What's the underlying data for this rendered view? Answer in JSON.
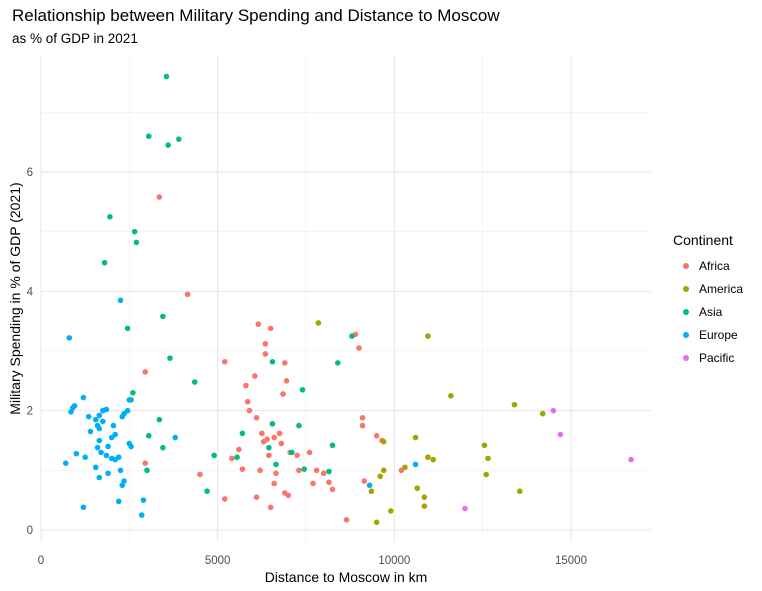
{
  "chart_data": {
    "type": "scatter",
    "title": "Relationship between Military Spending and Distance to Moscow",
    "subtitle": "as % of GDP in 2021",
    "xlabel": "Distance to Moscow in km",
    "ylabel": "Military Spending in % of GDP (2021)",
    "xlim": [
      0,
      17500
    ],
    "ylim": [
      0,
      7.6
    ],
    "x_ticks": [
      0,
      5000,
      10000,
      15000
    ],
    "x_tick_labels": [
      "0",
      "5000",
      "10000",
      "15000"
    ],
    "y_ticks": [
      0,
      2,
      4,
      6
    ],
    "y_tick_labels": [
      "0",
      "2",
      "4",
      "6"
    ],
    "grid": true,
    "legend": {
      "title": "Continent",
      "position": "right"
    },
    "series": [
      {
        "name": "Africa",
        "color": "#F8766D",
        "points": [
          [
            3350,
            5.58
          ],
          [
            4150,
            3.95
          ],
          [
            2950,
            2.65
          ],
          [
            2950,
            1.12
          ],
          [
            4500,
            0.93
          ],
          [
            5200,
            0.52
          ],
          [
            5200,
            2.82
          ],
          [
            5600,
            1.35
          ],
          [
            5700,
            1.02
          ],
          [
            5800,
            2.42
          ],
          [
            5850,
            2.15
          ],
          [
            5900,
            2.0
          ],
          [
            6050,
            2.58
          ],
          [
            6100,
            1.88
          ],
          [
            6150,
            3.45
          ],
          [
            6200,
            1.0
          ],
          [
            6250,
            1.62
          ],
          [
            6300,
            1.48
          ],
          [
            6350,
            3.12
          ],
          [
            6350,
            2.95
          ],
          [
            6400,
            1.52
          ],
          [
            6450,
            1.25
          ],
          [
            6500,
            0.38
          ],
          [
            6550,
            1.78
          ],
          [
            6600,
            1.55
          ],
          [
            6600,
            0.78
          ],
          [
            6650,
            0.95
          ],
          [
            6750,
            1.62
          ],
          [
            6800,
            1.45
          ],
          [
            6850,
            2.28
          ],
          [
            6900,
            2.8
          ],
          [
            6900,
            0.62
          ],
          [
            6950,
            2.5
          ],
          [
            7000,
            0.58
          ],
          [
            7050,
            1.3
          ],
          [
            7250,
            1.25
          ],
          [
            7300,
            1.0
          ],
          [
            7700,
            0.78
          ],
          [
            7800,
            1.0
          ],
          [
            8000,
            0.95
          ],
          [
            8150,
            0.8
          ],
          [
            8250,
            0.68
          ],
          [
            8650,
            0.17
          ],
          [
            8900,
            3.28
          ],
          [
            9000,
            3.05
          ],
          [
            9100,
            1.88
          ],
          [
            9100,
            1.75
          ],
          [
            9150,
            0.82
          ],
          [
            9500,
            1.58
          ],
          [
            9650,
            1.5
          ],
          [
            10200,
            1.0
          ],
          [
            6500,
            3.38
          ],
          [
            7600,
            1.3
          ],
          [
            5400,
            1.2
          ],
          [
            6100,
            0.55
          ]
        ]
      },
      {
        "name": "America",
        "color": "#A3A500",
        "points": [
          [
            7850,
            3.47
          ],
          [
            10950,
            3.25
          ],
          [
            11600,
            2.25
          ],
          [
            13400,
            2.1
          ],
          [
            14200,
            1.95
          ],
          [
            9700,
            1.48
          ],
          [
            10600,
            1.55
          ],
          [
            10950,
            1.22
          ],
          [
            11100,
            1.18
          ],
          [
            10300,
            1.05
          ],
          [
            9600,
            0.9
          ],
          [
            9700,
            1.0
          ],
          [
            9350,
            0.65
          ],
          [
            10650,
            0.7
          ],
          [
            10850,
            0.55
          ],
          [
            10850,
            0.4
          ],
          [
            9500,
            0.13
          ],
          [
            9900,
            0.32
          ],
          [
            12550,
            1.42
          ],
          [
            12650,
            1.2
          ],
          [
            12600,
            0.93
          ],
          [
            13550,
            0.65
          ]
        ]
      },
      {
        "name": "Asia",
        "color": "#00BF7D",
        "points": [
          [
            3550,
            7.6
          ],
          [
            3050,
            6.6
          ],
          [
            3900,
            6.55
          ],
          [
            3600,
            6.45
          ],
          [
            1950,
            5.25
          ],
          [
            2650,
            5.0
          ],
          [
            2700,
            4.82
          ],
          [
            1800,
            4.48
          ],
          [
            3450,
            3.58
          ],
          [
            2450,
            3.38
          ],
          [
            3650,
            2.88
          ],
          [
            4350,
            2.48
          ],
          [
            2600,
            2.3
          ],
          [
            2550,
            2.18
          ],
          [
            3350,
            1.85
          ],
          [
            3050,
            1.58
          ],
          [
            3450,
            1.38
          ],
          [
            5550,
            1.22
          ],
          [
            4900,
            1.25
          ],
          [
            5700,
            1.62
          ],
          [
            6450,
            1.38
          ],
          [
            6550,
            1.78
          ],
          [
            6550,
            2.82
          ],
          [
            7400,
            2.35
          ],
          [
            7300,
            1.75
          ],
          [
            8250,
            1.42
          ],
          [
            8400,
            2.8
          ],
          [
            8800,
            3.25
          ],
          [
            8150,
            0.98
          ],
          [
            7450,
            1.02
          ],
          [
            7100,
            1.3
          ],
          [
            4700,
            0.65
          ],
          [
            3000,
            1.0
          ],
          [
            6650,
            1.1
          ]
        ]
      },
      {
        "name": "Europe",
        "color": "#00B0F6",
        "points": [
          [
            800,
            3.22
          ],
          [
            2250,
            3.85
          ],
          [
            1200,
            2.22
          ],
          [
            900,
            2.05
          ],
          [
            850,
            1.98
          ],
          [
            950,
            2.08
          ],
          [
            1350,
            1.9
          ],
          [
            1650,
            1.92
          ],
          [
            1750,
            2.0
          ],
          [
            1850,
            2.02
          ],
          [
            2000,
            1.55
          ],
          [
            2100,
            1.6
          ],
          [
            2300,
            1.9
          ],
          [
            2350,
            1.95
          ],
          [
            2450,
            2.0
          ],
          [
            2500,
            2.18
          ],
          [
            1550,
            1.85
          ],
          [
            1600,
            1.75
          ],
          [
            1650,
            1.7
          ],
          [
            1650,
            1.5
          ],
          [
            1600,
            1.38
          ],
          [
            1700,
            1.3
          ],
          [
            1850,
            1.25
          ],
          [
            2000,
            1.2
          ],
          [
            2200,
            1.22
          ],
          [
            1900,
            1.4
          ],
          [
            2100,
            1.18
          ],
          [
            1000,
            1.28
          ],
          [
            1250,
            1.22
          ],
          [
            700,
            1.12
          ],
          [
            1550,
            1.05
          ],
          [
            2250,
            1.0
          ],
          [
            1900,
            0.95
          ],
          [
            1650,
            0.88
          ],
          [
            2350,
            0.82
          ],
          [
            2300,
            0.75
          ],
          [
            2550,
            1.4
          ],
          [
            3800,
            1.55
          ],
          [
            2900,
            0.5
          ],
          [
            2200,
            0.48
          ],
          [
            1200,
            0.38
          ],
          [
            2850,
            0.25
          ],
          [
            1750,
            1.82
          ],
          [
            2050,
            1.75
          ],
          [
            2500,
            1.45
          ],
          [
            9300,
            0.75
          ],
          [
            10600,
            1.1
          ],
          [
            1400,
            1.65
          ]
        ]
      },
      {
        "name": "Pacific",
        "color": "#E76BF3",
        "points": [
          [
            14500,
            2.0
          ],
          [
            14700,
            1.6
          ],
          [
            16700,
            1.18
          ],
          [
            12000,
            0.36
          ]
        ]
      }
    ]
  }
}
